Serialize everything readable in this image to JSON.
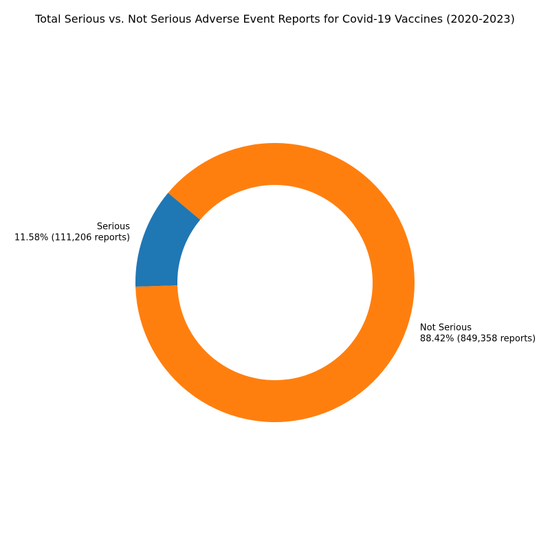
{
  "chart_data": {
    "type": "pie",
    "variant": "donut",
    "title": "Total Serious vs. Not Serious Adverse Event Reports for Covid-19 Vaccines (2020-2023)",
    "slices": [
      {
        "name": "Serious",
        "value": 111206,
        "percent_label": "11.58% (111,206 reports)",
        "color": "#1f77b4"
      },
      {
        "name": "Not Serious",
        "value": 849358,
        "percent_label": "88.42% (849,358 reports)",
        "color": "#ff7f0e"
      }
    ],
    "start_angle_deg": 140,
    "direction": "counterclockwise",
    "legend": "none"
  }
}
